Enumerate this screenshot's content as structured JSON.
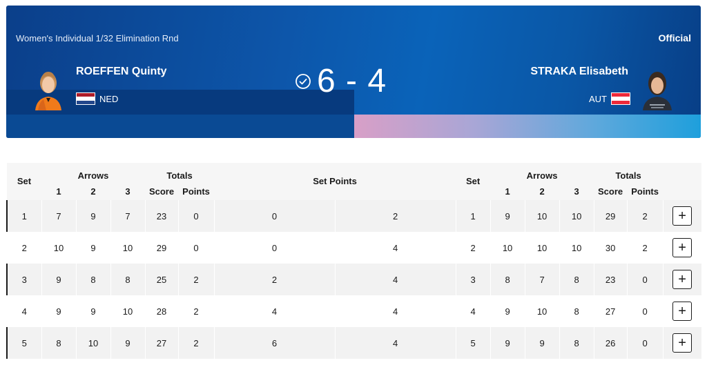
{
  "match": {
    "round": "Women's Individual 1/32 Elimination Rnd",
    "status": "Official",
    "score": "6 - 4",
    "left": {
      "name": "ROEFFEN Quinty",
      "country": "NED",
      "flag_colors": [
        "#ae1c28",
        "#ffffff",
        "#21468b"
      ]
    },
    "right": {
      "name": "STRAKA Elisabeth",
      "country": "AUT",
      "flag_colors": [
        "#ed2939",
        "#ffffff",
        "#ed2939"
      ]
    }
  },
  "table": {
    "headers": {
      "set": "Set",
      "arrows": "Arrows",
      "totals": "Totals",
      "set_points": "Set Points",
      "a1": "1",
      "a2": "2",
      "a3": "3",
      "score": "Score",
      "points": "Points"
    },
    "rows": [
      {
        "set_l": "1",
        "l1": "7",
        "l2": "9",
        "l3": "7",
        "l_score": "23",
        "l_pts": "0",
        "sp_l": "0",
        "sp_r": "2",
        "set_r": "1",
        "r1": "9",
        "r2": "10",
        "r3": "10",
        "r_score": "29",
        "r_pts": "2"
      },
      {
        "set_l": "2",
        "l1": "10",
        "l2": "9",
        "l3": "10",
        "l_score": "29",
        "l_pts": "0",
        "sp_l": "0",
        "sp_r": "4",
        "set_r": "2",
        "r1": "10",
        "r2": "10",
        "r3": "10",
        "r_score": "30",
        "r_pts": "2"
      },
      {
        "set_l": "3",
        "l1": "9",
        "l2": "8",
        "l3": "8",
        "l_score": "25",
        "l_pts": "2",
        "sp_l": "2",
        "sp_r": "4",
        "set_r": "3",
        "r1": "8",
        "r2": "7",
        "r3": "8",
        "r_score": "23",
        "r_pts": "0"
      },
      {
        "set_l": "4",
        "l1": "9",
        "l2": "9",
        "l3": "10",
        "l_score": "28",
        "l_pts": "2",
        "sp_l": "4",
        "sp_r": "4",
        "set_r": "4",
        "r1": "9",
        "r2": "10",
        "r3": "8",
        "r_score": "27",
        "r_pts": "0"
      },
      {
        "set_l": "5",
        "l1": "8",
        "l2": "10",
        "l3": "9",
        "l_score": "27",
        "l_pts": "2",
        "sp_l": "6",
        "sp_r": "4",
        "set_r": "5",
        "r1": "9",
        "r2": "9",
        "r3": "8",
        "r_score": "26",
        "r_pts": "0"
      }
    ],
    "expand_icon": "plus-icon",
    "expand_label": "+"
  }
}
